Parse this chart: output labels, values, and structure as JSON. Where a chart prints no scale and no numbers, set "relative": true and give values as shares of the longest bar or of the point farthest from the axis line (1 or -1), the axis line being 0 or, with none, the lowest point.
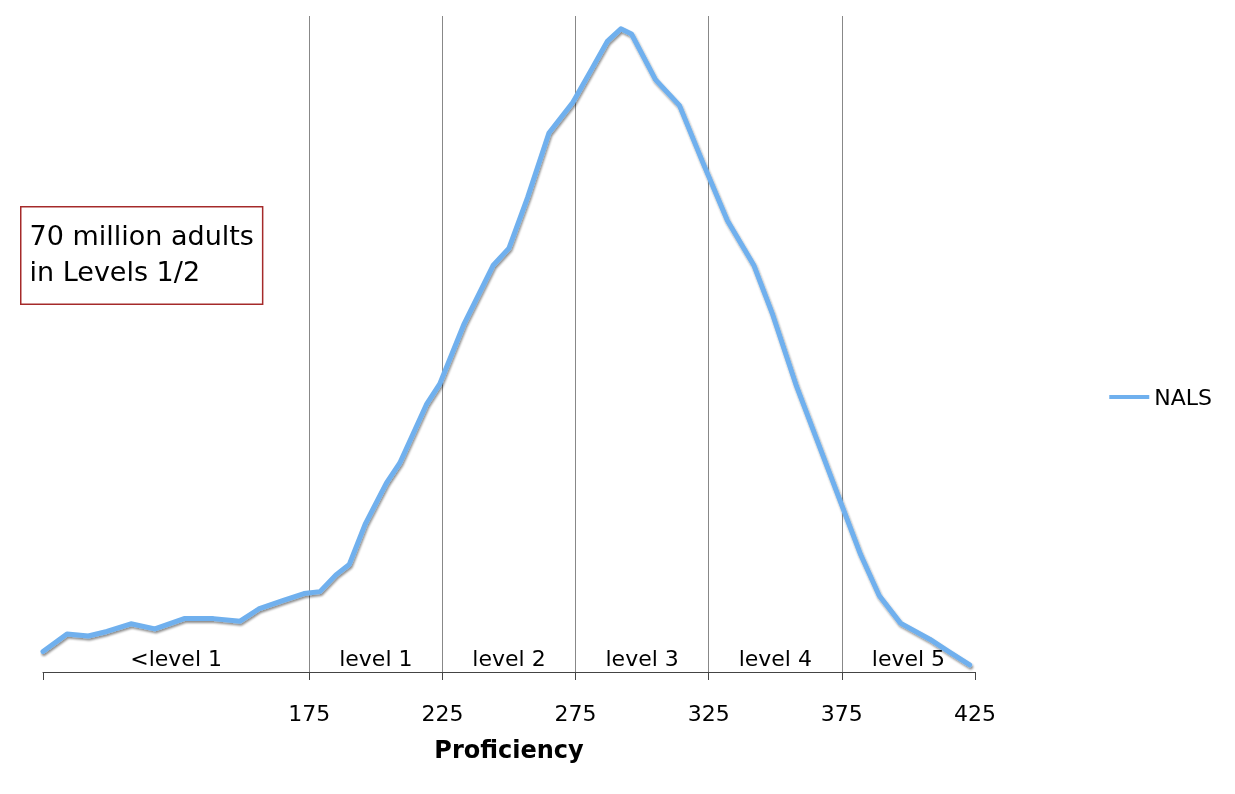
{
  "chart_data": {
    "type": "line",
    "xlabel": "Proficiency",
    "relative": true,
    "legend": "right",
    "grid": false,
    "marker": "none",
    "line_style": "solid",
    "xlim": [
      75,
      425
    ],
    "xticks": [
      {
        "value": 75,
        "label": null
      },
      175,
      225,
      275,
      325,
      375,
      425
    ],
    "annotations": [
      "70 million adults\nin Levels 1/2",
      "<level 1",
      "level 1",
      "level 2",
      "level 3",
      "level 4",
      "level 5"
    ],
    "ref_lines": [
      {
        "axis": "x",
        "value": 175,
        "label": null,
        "color": "#888888"
      },
      {
        "axis": "x",
        "value": 225,
        "label": null,
        "color": "#888888"
      },
      {
        "axis": "x",
        "value": 275,
        "label": null,
        "color": "#888888"
      },
      {
        "axis": "x",
        "value": 325,
        "label": null,
        "color": "#888888"
      },
      {
        "axis": "x",
        "value": 375,
        "label": null,
        "color": "#888888"
      }
    ],
    "series": [
      {
        "name": "NALS",
        "color": "#6fb0ee",
        "x": [
          75,
          84,
          92,
          99,
          108,
          117,
          128,
          139,
          149,
          156,
          165,
          173,
          179,
          185,
          190,
          196,
          204,
          209,
          219,
          224,
          233,
          244,
          250,
          257,
          265,
          274,
          281,
          287,
          292,
          296,
          305,
          314,
          323,
          332,
          342,
          349,
          358,
          366,
          374,
          382,
          389,
          397,
          408,
          415,
          423
        ],
        "values": [
          0.032,
          0.059,
          0.056,
          0.063,
          0.075,
          0.067,
          0.083,
          0.083,
          0.079,
          0.098,
          0.111,
          0.122,
          0.125,
          0.151,
          0.167,
          0.23,
          0.294,
          0.325,
          0.416,
          0.448,
          0.54,
          0.632,
          0.659,
          0.738,
          0.838,
          0.886,
          0.937,
          0.981,
          1.0,
          0.992,
          0.921,
          0.881,
          0.79,
          0.702,
          0.632,
          0.556,
          0.444,
          0.357,
          0.27,
          0.183,
          0.119,
          0.076,
          0.051,
          0.032,
          0.011
        ]
      }
    ]
  }
}
